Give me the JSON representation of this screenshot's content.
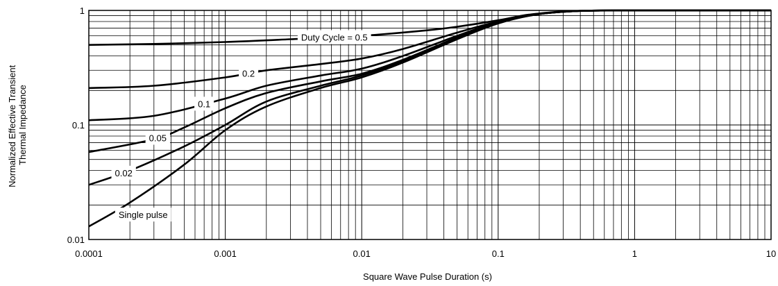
{
  "chart_data": {
    "type": "line",
    "xlabel": "Square Wave Pulse Duration (s)",
    "ylabel_lines": [
      "Normalized Effective Transient",
      "Thermal Impedance"
    ],
    "x_scale": "log",
    "y_scale": "log",
    "xlim": [
      0.0001,
      10
    ],
    "ylim": [
      0.01,
      1
    ],
    "grid": true,
    "x_ticks": [
      {
        "value": 0.0001,
        "label": "0.0001"
      },
      {
        "value": 0.001,
        "label": "0.001"
      },
      {
        "value": 0.01,
        "label": "0.01"
      },
      {
        "value": 0.1,
        "label": "0.1"
      },
      {
        "value": 1,
        "label": "1"
      },
      {
        "value": 10,
        "label": "10"
      }
    ],
    "y_ticks": [
      {
        "value": 0.01,
        "label": "0.01"
      },
      {
        "value": 0.1,
        "label": "0.1"
      },
      {
        "value": 1,
        "label": "1"
      }
    ],
    "series": [
      {
        "name": "Duty Cycle = 0.5",
        "points": [
          [
            0.0001,
            0.5
          ],
          [
            0.0003,
            0.51
          ],
          [
            0.001,
            0.53
          ],
          [
            0.003,
            0.56
          ],
          [
            0.01,
            0.6
          ],
          [
            0.03,
            0.67
          ],
          [
            0.05,
            0.72
          ],
          [
            0.1,
            0.82
          ],
          [
            0.15,
            0.9
          ],
          [
            0.2,
            0.94
          ],
          [
            0.3,
            0.98
          ],
          [
            0.5,
            0.995
          ],
          [
            1,
            1.0
          ],
          [
            10,
            1.0
          ]
        ]
      },
      {
        "name": "0.2",
        "points": [
          [
            0.0001,
            0.21
          ],
          [
            0.0003,
            0.22
          ],
          [
            0.001,
            0.26
          ],
          [
            0.002,
            0.3
          ],
          [
            0.005,
            0.34
          ],
          [
            0.01,
            0.38
          ],
          [
            0.02,
            0.46
          ],
          [
            0.05,
            0.64
          ],
          [
            0.1,
            0.8
          ],
          [
            0.2,
            0.93
          ],
          [
            0.4,
            0.99
          ],
          [
            1,
            1.0
          ],
          [
            10,
            1.0
          ]
        ]
      },
      {
        "name": "0.1",
        "points": [
          [
            0.0001,
            0.11
          ],
          [
            0.0003,
            0.12
          ],
          [
            0.001,
            0.17
          ],
          [
            0.002,
            0.22
          ],
          [
            0.005,
            0.27
          ],
          [
            0.01,
            0.31
          ],
          [
            0.02,
            0.4
          ],
          [
            0.05,
            0.6
          ],
          [
            0.1,
            0.79
          ],
          [
            0.2,
            0.93
          ],
          [
            0.4,
            0.99
          ],
          [
            1,
            1.0
          ],
          [
            10,
            1.0
          ]
        ]
      },
      {
        "name": "0.05",
        "points": [
          [
            0.0001,
            0.058
          ],
          [
            0.0003,
            0.075
          ],
          [
            0.0005,
            0.095
          ],
          [
            0.001,
            0.14
          ],
          [
            0.002,
            0.19
          ],
          [
            0.005,
            0.24
          ],
          [
            0.01,
            0.28
          ],
          [
            0.02,
            0.37
          ],
          [
            0.05,
            0.58
          ],
          [
            0.1,
            0.78
          ],
          [
            0.2,
            0.93
          ],
          [
            0.4,
            0.99
          ],
          [
            1,
            1.0
          ],
          [
            10,
            1.0
          ]
        ]
      },
      {
        "name": "0.02",
        "points": [
          [
            0.0001,
            0.03
          ],
          [
            0.0002,
            0.04
          ],
          [
            0.0005,
            0.065
          ],
          [
            0.001,
            0.1
          ],
          [
            0.002,
            0.16
          ],
          [
            0.005,
            0.22
          ],
          [
            0.01,
            0.27
          ],
          [
            0.02,
            0.36
          ],
          [
            0.05,
            0.57
          ],
          [
            0.1,
            0.78
          ],
          [
            0.2,
            0.93
          ],
          [
            0.4,
            0.99
          ],
          [
            1,
            1.0
          ],
          [
            10,
            1.0
          ]
        ]
      },
      {
        "name": "Single pulse",
        "points": [
          [
            0.0001,
            0.013
          ],
          [
            0.0002,
            0.021
          ],
          [
            0.0005,
            0.045
          ],
          [
            0.001,
            0.09
          ],
          [
            0.002,
            0.145
          ],
          [
            0.005,
            0.21
          ],
          [
            0.01,
            0.26
          ],
          [
            0.02,
            0.35
          ],
          [
            0.05,
            0.56
          ],
          [
            0.1,
            0.77
          ],
          [
            0.2,
            0.93
          ],
          [
            0.4,
            0.99
          ],
          [
            1,
            1.0
          ],
          [
            10,
            1.0
          ]
        ]
      }
    ],
    "series_label_anchors": [
      {
        "series": 0,
        "x": 0.0063
      },
      {
        "series": 1,
        "x": 0.00148
      },
      {
        "series": 2,
        "x": 0.0007
      },
      {
        "series": 3,
        "x": 0.00032
      },
      {
        "series": 4,
        "x": 0.00018
      },
      {
        "series": 5,
        "x": 0.00025
      }
    ]
  }
}
